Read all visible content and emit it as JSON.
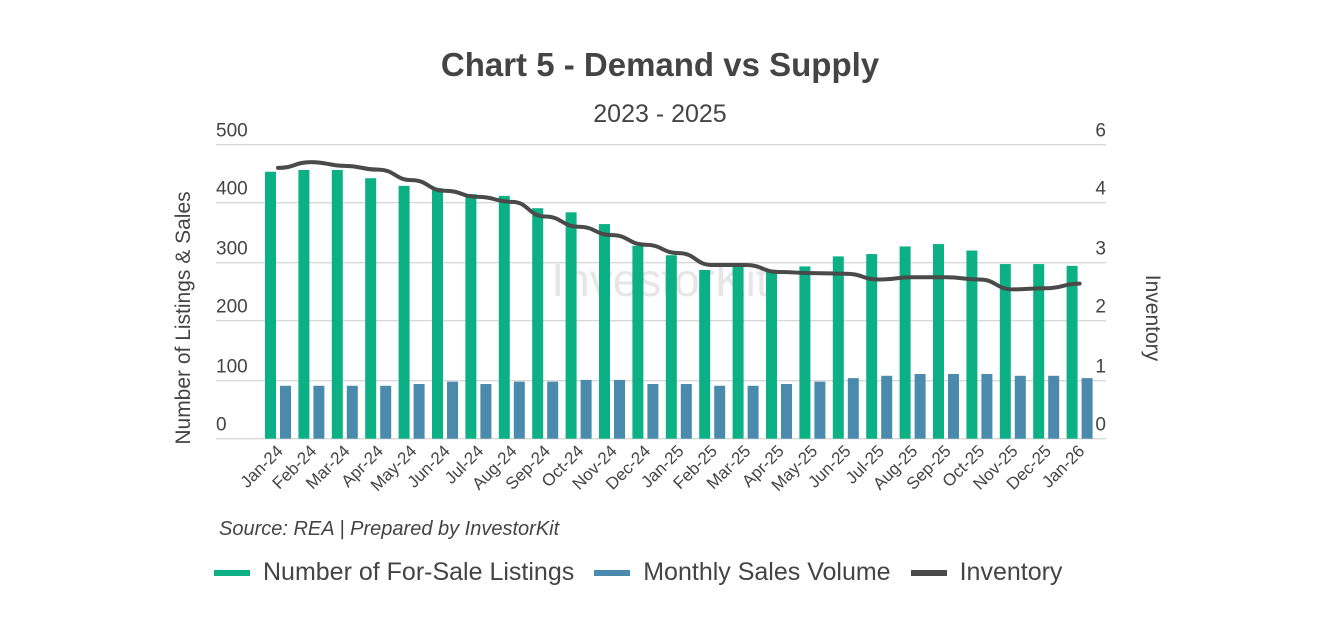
{
  "chart_data": {
    "type": "bar+line",
    "title": "Chart 5 - Demand vs Supply",
    "subtitle": "2023 - 2025",
    "ylabel": "Number of Listings & Sales",
    "y2label": "Inventory",
    "ylim": [
      0,
      500
    ],
    "yticks": [
      "0",
      "100",
      "200",
      "300",
      "400",
      "500"
    ],
    "y2ticks": [
      "0",
      "1",
      "2",
      "3",
      "4",
      "6"
    ],
    "grid": true,
    "legend_position": "bottom",
    "categories": [
      "Jan-24",
      "Feb-24",
      "Mar-24",
      "Apr-24",
      "May-24",
      "Jun-24",
      "Jul-24",
      "Aug-24",
      "Sep-24",
      "Oct-24",
      "Nov-24",
      "Dec-24",
      "Jan-25",
      "Feb-25",
      "Mar-25",
      "Apr-25",
      "May-25",
      "Jun-25",
      "Jul-25",
      "Aug-25",
      "Sep-25",
      "Oct-25",
      "Nov-25",
      "Dec-25",
      "Jan-26"
    ],
    "series": [
      {
        "name": "Number of For-Sale Listings",
        "type": "bar",
        "axis": "left",
        "color": "#0bb085",
        "values": [
          454,
          457,
          457,
          443,
          430,
          426,
          416,
          413,
          392,
          385,
          365,
          328,
          312,
          287,
          292,
          287,
          293,
          310,
          314,
          327,
          331,
          320,
          297,
          297,
          294
        ]
      },
      {
        "name": "Monthly Sales Volume",
        "type": "bar",
        "axis": "left",
        "color": "#4a8aad",
        "values": [
          90,
          90,
          90,
          90,
          93,
          97,
          93,
          97,
          97,
          100,
          100,
          93,
          93,
          90,
          90,
          93,
          97,
          103,
          107,
          110,
          110,
          110,
          107,
          107,
          103
        ]
      },
      {
        "name": "Inventory",
        "type": "line",
        "axis": "right",
        "color": "#4a4a4a",
        "values": [
          5.2,
          5.4,
          5.27,
          5.14,
          4.78,
          4.41,
          4.2,
          4.03,
          3.77,
          3.6,
          3.46,
          3.3,
          3.16,
          2.96,
          2.96,
          2.84,
          2.82,
          2.81,
          2.71,
          2.75,
          2.75,
          2.71,
          2.54,
          2.56,
          2.64
        ]
      }
    ],
    "source": "Source: REA | Prepared by InvestorKit",
    "watermark": "InvestorKit"
  }
}
